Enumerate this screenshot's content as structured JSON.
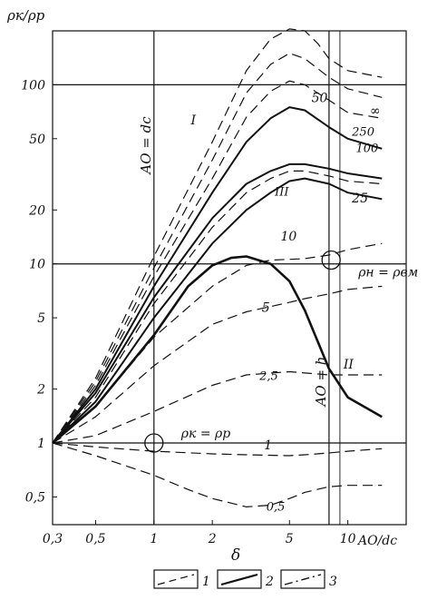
{
  "chart_data": {
    "type": "line",
    "xscale": "log",
    "yscale": "log",
    "xlim": [
      0.3,
      20
    ],
    "ylim": [
      0.35,
      200
    ],
    "grid": false,
    "ylabel": "ρк/ρр",
    "xlabel": "δ",
    "x_end_label": "AO/dc",
    "xticks": [
      {
        "v": 0.3,
        "label": "0,3"
      },
      {
        "v": 0.5,
        "label": "0,5"
      },
      {
        "v": 1,
        "label": "1"
      },
      {
        "v": 2,
        "label": "2"
      },
      {
        "v": 5,
        "label": "5"
      },
      {
        "v": 10,
        "label": "10"
      }
    ],
    "yticks": [
      {
        "v": 0.5,
        "label": "0,5"
      },
      {
        "v": 1,
        "label": "1"
      },
      {
        "v": 2,
        "label": "2"
      },
      {
        "v": 5,
        "label": "5"
      },
      {
        "v": 10,
        "label": "10"
      },
      {
        "v": 20,
        "label": "20"
      },
      {
        "v": 50,
        "label": "50"
      },
      {
        "v": 100,
        "label": "100"
      }
    ],
    "hlines": [
      1,
      10,
      100
    ],
    "vlines": [
      {
        "x": 1,
        "label": "AO = dc"
      },
      {
        "x": 8,
        "label": "AO = h"
      }
    ],
    "markers": [
      {
        "x": 1,
        "y": 1,
        "label": "ρк = ρр"
      },
      {
        "x": 8.2,
        "y": 10.5,
        "label": "ρн = ρвм"
      }
    ],
    "series": [
      {
        "name": "0,5",
        "style": "dashed",
        "x": [
          0.3,
          0.5,
          1,
          1.5,
          2,
          3,
          4,
          5,
          6,
          8,
          10,
          15
        ],
        "y": [
          1,
          0.85,
          0.66,
          0.55,
          0.49,
          0.44,
          0.45,
          0.49,
          0.53,
          0.57,
          0.58,
          0.58
        ]
      },
      {
        "name": "1",
        "style": "dashed",
        "x": [
          0.3,
          0.5,
          1,
          2,
          3,
          5,
          6,
          8,
          10,
          15
        ],
        "y": [
          1,
          0.95,
          0.9,
          0.87,
          0.86,
          0.85,
          0.86,
          0.88,
          0.9,
          0.93
        ]
      },
      {
        "name": "2,5",
        "style": "dashed",
        "x": [
          0.3,
          0.5,
          1,
          2,
          3,
          5,
          8,
          10,
          15
        ],
        "y": [
          1,
          1.1,
          1.5,
          2.1,
          2.4,
          2.5,
          2.4,
          2.4,
          2.4
        ]
      },
      {
        "name": "5",
        "style": "dashed",
        "x": [
          0.3,
          0.5,
          1,
          2,
          3,
          5,
          6,
          8,
          10,
          15
        ],
        "y": [
          1,
          1.4,
          2.7,
          4.6,
          5.4,
          6.1,
          6.4,
          6.8,
          7.2,
          7.5
        ]
      },
      {
        "name": "10",
        "style": "dashed",
        "x": [
          0.3,
          0.5,
          1,
          2,
          3,
          4,
          5,
          6,
          8,
          10,
          15
        ],
        "y": [
          1,
          1.6,
          3.9,
          7.5,
          9.8,
          10.5,
          10.6,
          10.7,
          11.2,
          12,
          13
        ]
      },
      {
        "name": "25",
        "style": "dashed",
        "x": [
          0.3,
          0.5,
          1,
          2,
          3,
          4,
          5,
          6,
          8,
          10,
          15
        ],
        "y": [
          1,
          1.8,
          6,
          16,
          25,
          30,
          33,
          33,
          31,
          29,
          28
        ]
      },
      {
        "name": "100",
        "style": "dashed",
        "x": [
          0.3,
          0.5,
          1,
          2,
          3,
          4,
          5,
          6,
          8,
          10,
          15
        ],
        "y": [
          1,
          2.1,
          8.5,
          30,
          66,
          92,
          105,
          100,
          82,
          70,
          65
        ]
      },
      {
        "name": "250",
        "style": "dashed",
        "x": [
          0.3,
          0.5,
          1,
          2,
          3,
          4,
          5,
          6,
          8,
          10,
          15
        ],
        "y": [
          1,
          2.2,
          9.5,
          38,
          90,
          130,
          150,
          140,
          110,
          95,
          85
        ]
      },
      {
        "name": "∞",
        "style": "dashed",
        "x": [
          0.3,
          0.5,
          1,
          2,
          3,
          4,
          5,
          6,
          7,
          8,
          10,
          15
        ],
        "y": [
          1,
          2.3,
          11,
          48,
          120,
          180,
          205,
          200,
          170,
          140,
          120,
          110
        ]
      },
      {
        "name": "50",
        "style": "solid",
        "x": [
          0.3,
          0.5,
          1,
          2,
          3,
          4,
          5,
          6,
          8,
          10,
          15
        ],
        "y": [
          1,
          2,
          7.5,
          25,
          48,
          65,
          75,
          72,
          58,
          50,
          44
        ]
      },
      {
        "name": "I",
        "style": "solid",
        "x": [
          0.3,
          0.5,
          1,
          2,
          3,
          4,
          5,
          6,
          8,
          10,
          15
        ],
        "y": [
          1,
          1.9,
          6.5,
          18,
          28,
          33,
          36,
          36,
          34,
          32,
          30
        ]
      },
      {
        "name": "III",
        "style": "solid",
        "x": [
          0.3,
          0.5,
          1,
          2,
          3,
          4,
          5,
          6,
          8,
          10,
          15
        ],
        "y": [
          1,
          1.7,
          5,
          13,
          20,
          25,
          29,
          30,
          28,
          25,
          23
        ]
      },
      {
        "name": "II",
        "style": "bold",
        "x": [
          0.3,
          0.5,
          1,
          1.5,
          2,
          2.5,
          3,
          4,
          5,
          6,
          8,
          10,
          15
        ],
        "y": [
          1,
          1.6,
          4,
          7.5,
          9.8,
          10.8,
          11,
          10,
          8,
          5.5,
          2.6,
          1.8,
          1.4
        ]
      }
    ],
    "series_labels": [
      {
        "text": "I",
        "x": 1.55,
        "y": 60
      },
      {
        "text": "III",
        "x": 4.2,
        "y": 24
      },
      {
        "text": "II",
        "x": 9.5,
        "y": 2.6
      },
      {
        "text": "50",
        "x": 6.5,
        "y": 80
      },
      {
        "text": "∞",
        "x": 13,
        "y": 68
      },
      {
        "text": "250",
        "x": 10.5,
        "y": 52
      },
      {
        "text": "100",
        "x": 11,
        "y": 42
      },
      {
        "text": "25",
        "x": 10.5,
        "y": 22
      },
      {
        "text": "10",
        "x": 4.5,
        "y": 13.5
      },
      {
        "text": "5",
        "x": 3.6,
        "y": 5.4
      },
      {
        "text": "2,5",
        "x": 3.5,
        "y": 2.25
      },
      {
        "text": "1",
        "x": 3.7,
        "y": 0.92
      },
      {
        "text": "0,5",
        "x": 3.8,
        "y": 0.42
      }
    ],
    "legend": {
      "placement": "bottom",
      "items": [
        {
          "style": "dashed",
          "label": "1"
        },
        {
          "style": "solid",
          "label": "2"
        },
        {
          "style": "dashdot",
          "label": "3"
        }
      ]
    }
  }
}
